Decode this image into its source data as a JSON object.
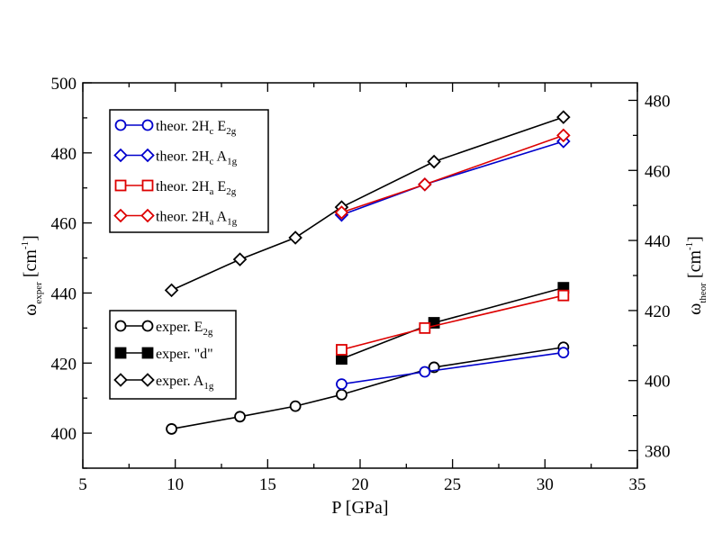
{
  "chart_data": {
    "type": "line",
    "xlabel": "P [GPa]",
    "ylabel_left": {
      "main": "ω",
      "sub": "exper",
      "unit": "[cm",
      "sup": "-1",
      "close": "]"
    },
    "ylabel_right": {
      "main": "ω",
      "sub": "theor",
      "unit": "[cm",
      "sup": "-1",
      "close": "]"
    },
    "xlim": [
      5,
      35
    ],
    "ylim_left": [
      390,
      500
    ],
    "ylim_right": [
      375,
      485
    ],
    "xticks": [
      5,
      10,
      15,
      20,
      25,
      30,
      35
    ],
    "yticks_left": [
      400,
      420,
      440,
      460,
      480,
      500
    ],
    "yticks_right": [
      380,
      400,
      420,
      440,
      460,
      480
    ],
    "series": [
      {
        "name": "exper. E2g",
        "label": {
          "main": "exper. E",
          "sub": "2g"
        },
        "axis": "left",
        "color": "#000000",
        "marker": "circle-open",
        "x": [
          9.8,
          13.5,
          16.5,
          19.0,
          24.0,
          31.0
        ],
        "y": [
          401.2,
          404.7,
          407.7,
          411.0,
          418.8,
          424.5
        ]
      },
      {
        "name": "exper. \"d\"",
        "label": {
          "main": "exper. \"d\"",
          "sub": ""
        },
        "axis": "left",
        "color": "#000000",
        "marker": "square-filled",
        "x": [
          19.0,
          24.0,
          31.0
        ],
        "y": [
          421.2,
          431.5,
          441.5
        ]
      },
      {
        "name": "exper. A1g",
        "label": {
          "main": "exper. A",
          "sub": "1g"
        },
        "axis": "left",
        "color": "#000000",
        "marker": "diamond-open",
        "x": [
          9.8,
          13.5,
          16.5,
          19.0,
          24.0,
          31.0
        ],
        "y": [
          440.8,
          449.6,
          455.8,
          464.5,
          477.5,
          490.2
        ]
      },
      {
        "name": "theor. 2Hc E2g",
        "label": {
          "main": "theor. 2H",
          "sub1": "c",
          "mid": " E",
          "sub2": "2g"
        },
        "axis": "left",
        "color": "#0000cc",
        "marker": "circle-open",
        "x": [
          19.0,
          23.5,
          31.0
        ],
        "y": [
          414.0,
          417.5,
          423.0
        ]
      },
      {
        "name": "theor. 2Hc A1g",
        "label": {
          "main": "theor. 2H",
          "sub1": "c",
          "mid": " A",
          "sub2": "1g"
        },
        "axis": "left",
        "color": "#0000cc",
        "marker": "diamond-open",
        "x": [
          19.0,
          23.5,
          31.0
        ],
        "y": [
          462.3,
          471.0,
          483.3
        ]
      },
      {
        "name": "theor. 2Ha E2g",
        "label": {
          "main": "theor. 2H",
          "sub1": "a",
          "mid": " E",
          "sub2": "2g"
        },
        "axis": "left",
        "color": "#dd0000",
        "marker": "square-open",
        "x": [
          19.0,
          23.5,
          31.0
        ],
        "y": [
          423.8,
          430.0,
          439.3
        ]
      },
      {
        "name": "theor. 2Ha A1g",
        "label": {
          "main": "theor. 2H",
          "sub1": "a",
          "mid": " A",
          "sub2": "1g"
        },
        "axis": "left",
        "color": "#dd0000",
        "marker": "diamond-open",
        "x": [
          19.0,
          23.5,
          31.0
        ],
        "y": [
          463.0,
          471.0,
          485.0
        ]
      }
    ],
    "legends": [
      {
        "position": "top-left",
        "entries": [
          "theor. 2Hc E2g",
          "theor. 2Hc A1g",
          "theor. 2Ha E2g",
          "theor. 2Ha A1g"
        ]
      },
      {
        "position": "middle-left",
        "entries": [
          "exper. E2g",
          "exper. \"d\"",
          "exper. A1g"
        ]
      }
    ]
  }
}
